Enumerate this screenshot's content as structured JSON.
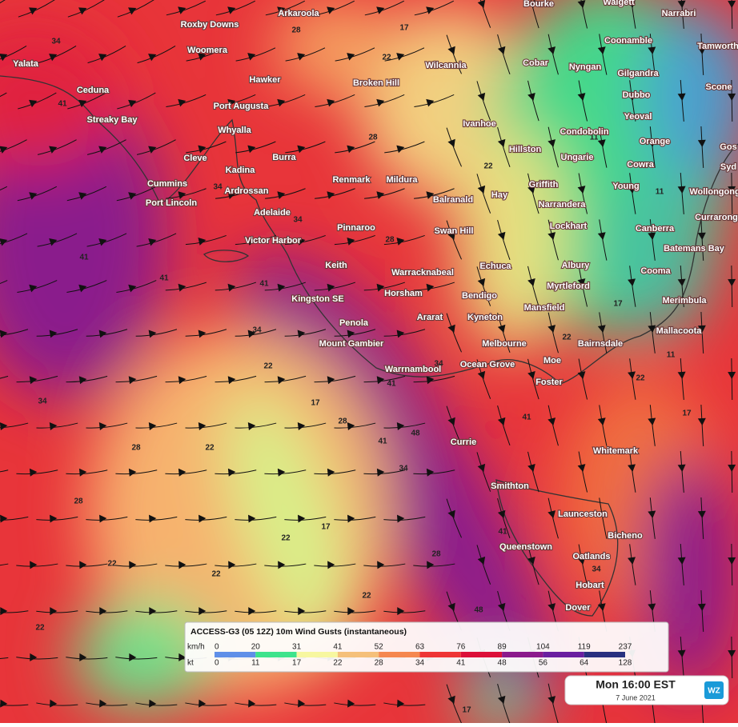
{
  "places": [
    "Bourke",
    "Walgett",
    "Narrabri",
    "Arkaroola",
    "Roxby Downs",
    "Coonamble",
    "Tamworth",
    "Woomera",
    "Yalata",
    "Cobar",
    "Wilcannia",
    "Nyngan",
    "Gilgandra",
    "Hawker",
    "Broken Hill",
    "Dubbo",
    "Scone",
    "Ceduna",
    "Port Augusta",
    "Yeoval",
    "Streaky Bay",
    "Ivanhoe",
    "Whyalla",
    "Condobolin",
    "Orange",
    "Gos",
    "Hillston",
    "Ungarie",
    "Cleve",
    "Burra",
    "Cowra",
    "Syd",
    "Kadina",
    "Renmark",
    "Mildura",
    "Griffith",
    "Cummins",
    "Young",
    "Ardrossan",
    "Wollongong",
    "Hay",
    "Balranald",
    "Port Lincoln",
    "Narrandera",
    "Adelaide",
    "Currarong",
    "Canberra",
    "Lockhart",
    "Pinnaroo",
    "Swan Hill",
    "Victor Harbor",
    "Batemans Bay",
    "Keith",
    "Albury",
    "Echuca",
    "Warracknabeal",
    "Cooma",
    "Myrtleford",
    "Horsham",
    "Bendigo",
    "Kingston SE",
    "Merimbula",
    "Mansfield",
    "Ararat",
    "Kyneton",
    "Penola",
    "Mallacoota",
    "Mount Gambier",
    "Melbourne",
    "Bairnsdale",
    "Moe",
    "Ocean Grove",
    "Warrnambool",
    "Foster",
    "Currie",
    "Whitemark",
    "Smithton",
    "Launceston",
    "Bicheno",
    "Queenstown",
    "Oatlands",
    "Hobart",
    "Dover"
  ],
  "contour_labels": [
    28,
    17,
    22,
    34,
    41,
    28,
    22,
    11,
    34,
    34,
    28,
    41,
    41,
    41,
    34,
    22,
    34,
    41,
    22,
    17,
    11,
    11,
    22,
    17,
    17,
    28,
    48,
    41,
    34,
    41,
    22,
    28,
    34,
    28,
    17,
    22,
    22,
    22,
    22,
    28,
    48,
    41,
    22,
    17,
    34
  ],
  "legend": {
    "title": "ACCESS-G3 (05 12Z) 10m Wind Gusts (instantaneous)",
    "scales": [
      {
        "unit": "km/h",
        "values": [
          0,
          20,
          31,
          41,
          52,
          63,
          76,
          89,
          104,
          119,
          237
        ]
      },
      {
        "unit": "kt",
        "values": [
          0,
          11,
          17,
          22,
          28,
          34,
          41,
          48,
          56,
          64,
          128
        ]
      }
    ],
    "colors": [
      "#5f8fe8",
      "#3de38c",
      "#f7f7a0",
      "#f5c07a",
      "#f5874f",
      "#ee3535",
      "#dc1039",
      "#8b1a8c",
      "#6a1fa0",
      "#283080"
    ]
  },
  "timestamp": {
    "time": "Mon 16:00 EST",
    "date": "7 June 2021",
    "logo": "WZ"
  }
}
